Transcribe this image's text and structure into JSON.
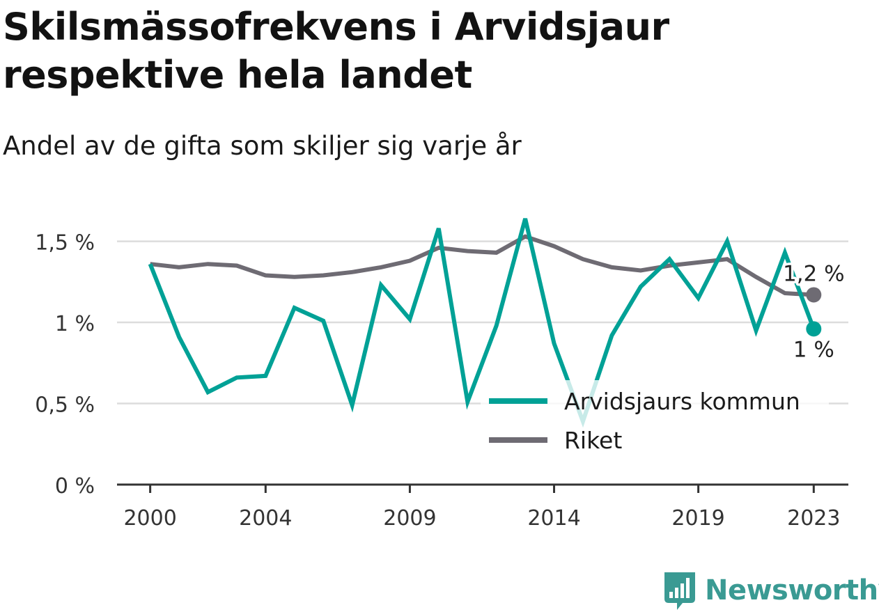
{
  "title": "Skilsmässofrekvens i Arvidsjaur respektive hela landet",
  "subtitle": "Andel av de gifta som skiljer sig varje år",
  "brand": {
    "name": "Newsworthy",
    "icon": "newsworthy-logo-icon",
    "color": "#3a9a93"
  },
  "chart_data": {
    "type": "line",
    "x": [
      2000,
      2001,
      2002,
      2003,
      2004,
      2005,
      2006,
      2007,
      2008,
      2009,
      2010,
      2011,
      2012,
      2013,
      2014,
      2015,
      2016,
      2017,
      2018,
      2019,
      2020,
      2021,
      2022,
      2023
    ],
    "series": [
      {
        "name": "Arvidsjaurs kommun",
        "color": "#00a196",
        "values": [
          1.36,
          0.91,
          0.57,
          0.66,
          0.67,
          1.09,
          1.01,
          0.49,
          1.23,
          1.02,
          1.58,
          0.51,
          0.98,
          1.64,
          0.87,
          0.39,
          0.92,
          1.22,
          1.39,
          1.15,
          1.5,
          0.95,
          1.43,
          0.96
        ]
      },
      {
        "name": "Riket",
        "color": "#6e6b73",
        "values": [
          1.36,
          1.34,
          1.36,
          1.35,
          1.29,
          1.28,
          1.29,
          1.31,
          1.34,
          1.38,
          1.46,
          1.44,
          1.43,
          1.53,
          1.47,
          1.39,
          1.34,
          1.32,
          1.35,
          1.37,
          1.39,
          1.28,
          1.18,
          1.17
        ]
      }
    ],
    "end_labels": [
      {
        "series": "Riket",
        "text": "1,2 %",
        "position": "above"
      },
      {
        "series": "Arvidsjaurs kommun",
        "text": "1 %",
        "position": "below"
      }
    ],
    "xticks": [
      2000,
      2004,
      2009,
      2014,
      2019,
      2023
    ],
    "xtick_labels": [
      "2000",
      "2004",
      "2009",
      "2014",
      "2019",
      "2023"
    ],
    "yticks": [
      0,
      0.5,
      1,
      1.5
    ],
    "ytick_labels": [
      "0 %",
      "0,5 %",
      "1 %",
      "1,5 %"
    ],
    "ylim": [
      0,
      1.7
    ],
    "xlim": [
      1998.85,
      2024.2
    ],
    "grid": "horizontal",
    "legend_position": "bottom-right",
    "xlabel": "",
    "ylabel": ""
  }
}
